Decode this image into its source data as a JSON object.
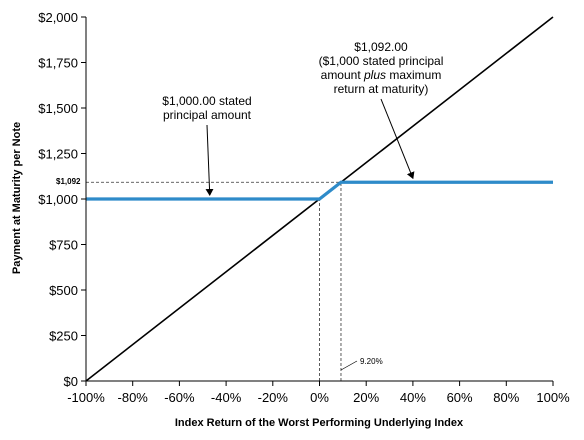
{
  "chart_data": {
    "type": "line",
    "title": "",
    "xlabel": "Index Return of the Worst Performing Underlying Index",
    "ylabel": "Payment at Maturity per Note",
    "xlim": [
      -100,
      100
    ],
    "ylim": [
      0,
      2000
    ],
    "x_ticks": [
      -100,
      -80,
      -60,
      -40,
      -20,
      0,
      20,
      40,
      60,
      80,
      100
    ],
    "x_tick_labels": [
      "-100%",
      "-80%",
      "-60%",
      "-40%",
      "-20%",
      "0%",
      "20%",
      "40%",
      "60%",
      "80%",
      "100%"
    ],
    "y_ticks": [
      0,
      250,
      500,
      750,
      1000,
      1250,
      1500,
      1750,
      2000
    ],
    "y_tick_labels": [
      "$0",
      "$250",
      "$500",
      "$750",
      "$1,000",
      "$1,250",
      "$1,500",
      "$1,750",
      "$2,000"
    ],
    "grid": false,
    "legend": "none",
    "series": [
      {
        "x": [
          -100,
          100
        ],
        "y": [
          0,
          2000
        ],
        "color": "#000000"
      },
      {
        "x": [
          -100,
          0,
          9.2,
          100
        ],
        "y": [
          1000,
          1000,
          1092,
          1092
        ],
        "color": "#2e8bc9"
      }
    ],
    "reference_lines": [
      {
        "from": [
          -100,
          1092
        ],
        "to": [
          9.2,
          1092
        ]
      },
      {
        "from": [
          0,
          0
        ],
        "to": [
          0,
          1000
        ]
      },
      {
        "from": [
          9.2,
          0
        ],
        "to": [
          9.2,
          1092
        ]
      }
    ],
    "markers": {
      "y_value_label": "$1,092",
      "y_value": 1092,
      "x_value_label": "9.20%",
      "x_value": 9.2
    },
    "annotations": [
      {
        "lines": [
          "$1,000.00 stated",
          "principal amount"
        ],
        "points_to": [
          -47,
          1000
        ]
      },
      {
        "lines": [
          "$1,092.00",
          "($1,000 stated principal",
          "amount plus maximum",
          "return at maturity)"
        ],
        "points_to": [
          40,
          1092
        ]
      }
    ]
  }
}
